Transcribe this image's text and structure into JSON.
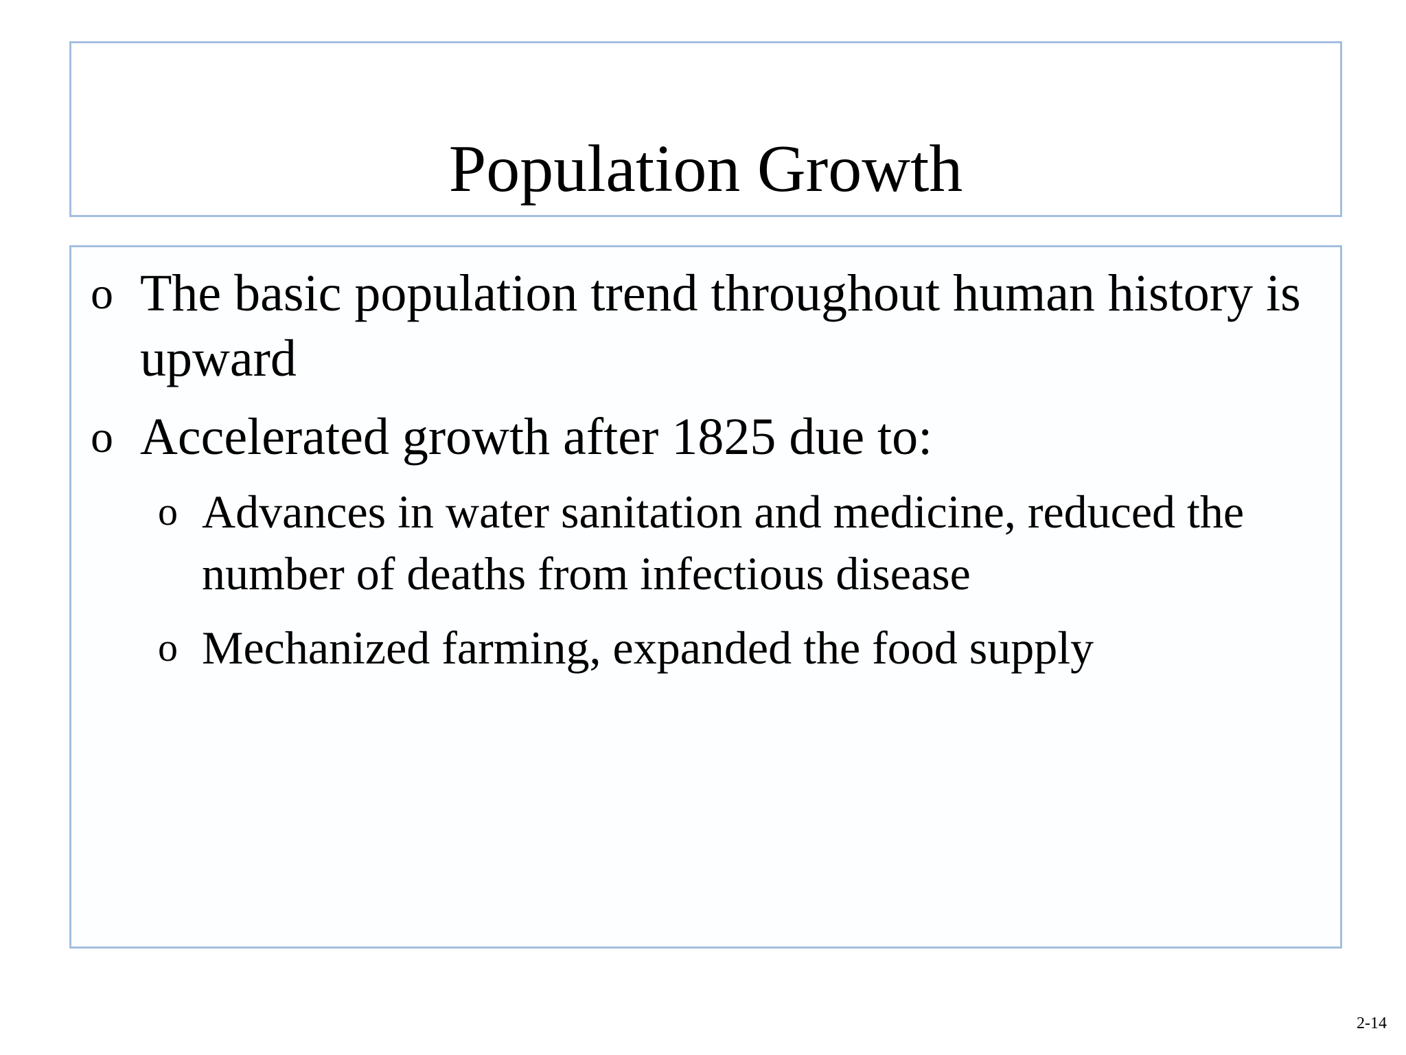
{
  "slide": {
    "title": "Population Growth",
    "bullets": [
      {
        "marker": "o",
        "text": "The basic population trend throughout human history is upward"
      },
      {
        "marker": "o",
        "text": "Accelerated growth after 1825 due to:",
        "children": [
          {
            "marker": "o",
            "text": "Advances in water sanitation and medicine, reduced the number of deaths from infectious disease"
          },
          {
            "marker": "o",
            "text": "Mechanized farming, expanded the food supply"
          }
        ]
      }
    ],
    "slide_number": "2-14",
    "colors": {
      "box_border": "#a4bee0",
      "text": "#000000",
      "background": "#ffffff"
    }
  }
}
